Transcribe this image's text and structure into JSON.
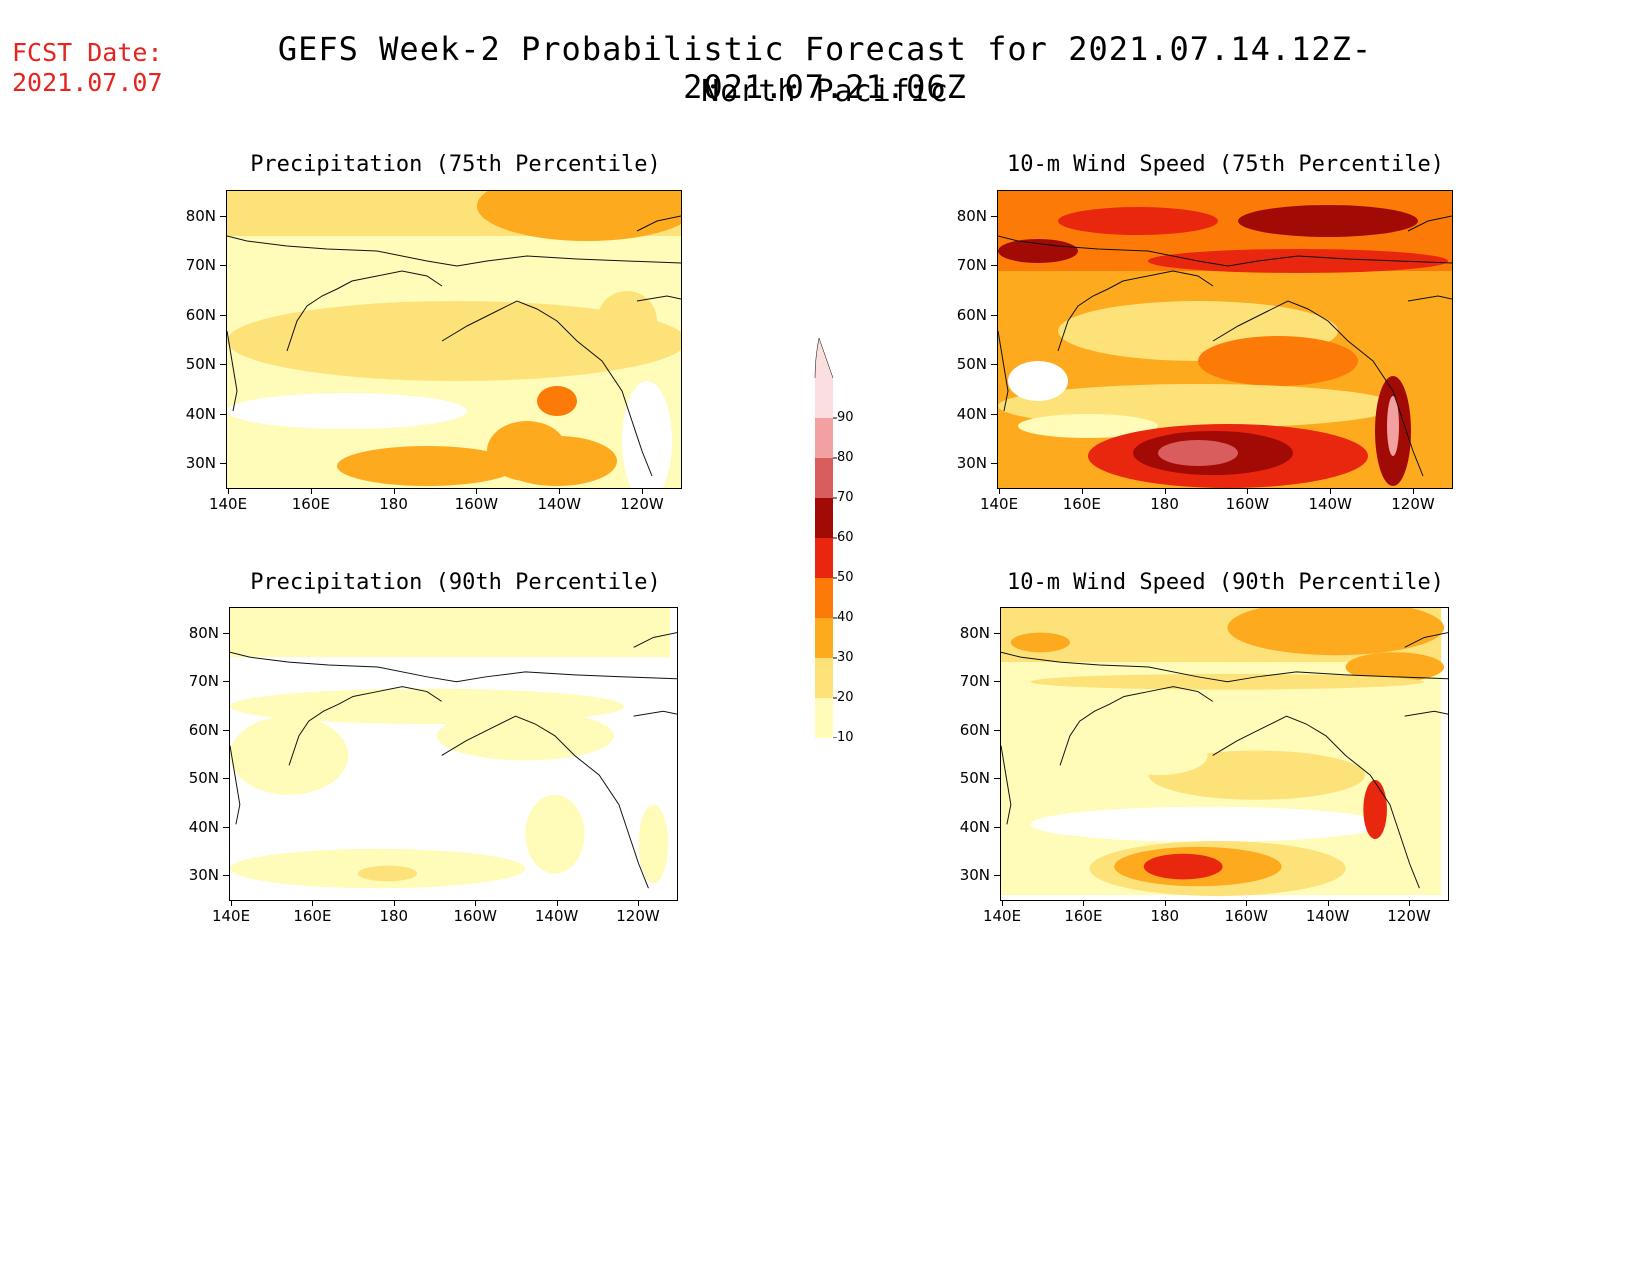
{
  "header": {
    "fcst_label": "FCST Date:",
    "fcst_date": "2021.07.07",
    "title_line1": "GEFS Week-2 Probabilistic Forecast for 2021.07.14.12Z-2021.07.21.06Z",
    "title_line2": "North Pacific"
  },
  "axes": {
    "lat_labels": [
      "80N",
      "70N",
      "60N",
      "50N",
      "40N",
      "30N"
    ],
    "lon_labels": [
      "140E",
      "160E",
      "180",
      "160W",
      "140W",
      "120W"
    ]
  },
  "panels": [
    {
      "id": "precip75",
      "title": "Precipitation (75th Percentile)"
    },
    {
      "id": "wind75",
      "title": "10-m Wind Speed (75th Percentile)"
    },
    {
      "id": "precip90",
      "title": "Precipitation (90th Percentile)"
    },
    {
      "id": "wind90",
      "title": "10-m Wind Speed (90th Percentile)"
    }
  ],
  "colorbar": {
    "levels": [
      10,
      20,
      30,
      40,
      50,
      60,
      70,
      80,
      90
    ],
    "labels": [
      "10",
      "20",
      "30",
      "40",
      "50",
      "60",
      "70",
      "80",
      "90"
    ],
    "colors": [
      "#fffbb8",
      "#fde27a",
      "#fdaa1f",
      "#fc7a08",
      "#e8270e",
      "#a20a06",
      "#d95d5d",
      "#f2a0a0",
      "#fbdede"
    ]
  }
}
